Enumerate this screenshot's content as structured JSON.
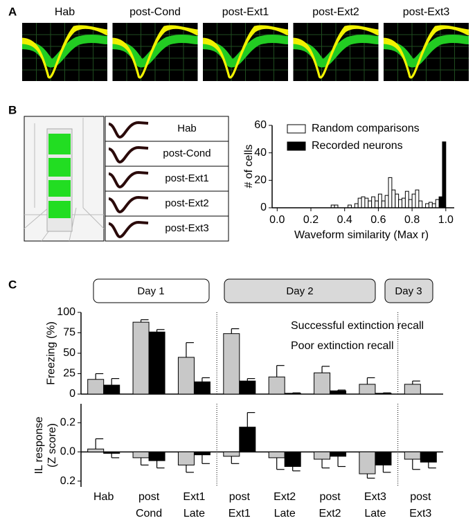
{
  "panel_labels": [
    "A",
    "B",
    "C"
  ],
  "panel_a": {
    "labels": [
      "Hab",
      "post-Cond",
      "post-Ext1",
      "post-Ext2",
      "post-Ext3"
    ]
  },
  "panel_b": {
    "labels": [
      "Hab",
      "post-Cond",
      "post-Ext1",
      "post-Ext2",
      "post-Ext3"
    ]
  },
  "panel_c": {
    "day_labels": [
      "Day 1",
      "Day 2",
      "Day 3"
    ]
  },
  "chart_data": [
    {
      "type": "histogram",
      "xlabel": "Waveform similarity (Max r)",
      "ylabel": "# of cells",
      "bins": [
        0.3,
        0.32,
        0.34,
        0.36,
        0.38,
        0.4,
        0.42,
        0.44,
        0.46,
        0.48,
        0.5,
        0.52,
        0.54,
        0.56,
        0.58,
        0.6,
        0.62,
        0.64,
        0.66,
        0.68,
        0.7,
        0.72,
        0.74,
        0.76,
        0.78,
        0.8,
        0.82,
        0.84,
        0.86,
        0.88,
        0.9,
        0.92,
        0.94,
        0.96,
        0.98,
        1.0
      ],
      "series": [
        {
          "name": "Random comparisons",
          "color": "#ffffff",
          "values": [
            0,
            2,
            2,
            0,
            0,
            0,
            2,
            0,
            3,
            7,
            8,
            7,
            5,
            8,
            5,
            10,
            5,
            9,
            22,
            13,
            10,
            6,
            7,
            12,
            6,
            10,
            13,
            5,
            0,
            3,
            4,
            3,
            6,
            0,
            0
          ]
        },
        {
          "name": "Recorded neurons",
          "color": "#000000",
          "values": [
            0,
            0,
            0,
            0,
            0,
            0,
            0,
            0,
            0,
            0,
            0,
            0,
            0,
            0,
            0,
            0,
            0,
            0,
            0,
            0,
            0,
            0,
            0,
            0,
            0,
            0,
            0,
            0,
            0,
            0,
            0,
            0,
            0,
            8,
            48
          ]
        }
      ],
      "xlim": [
        -0.03,
        1.05
      ],
      "ylim": [
        0,
        60
      ],
      "xticks": [
        {
          "value": 0,
          "label": "0.0"
        },
        {
          "value": 0.2,
          "label": "0.2"
        },
        {
          "value": 0.4,
          "label": "0.4"
        },
        {
          "value": 0.6,
          "label": "0.6"
        },
        {
          "value": 0.8,
          "label": "0.8"
        },
        {
          "value": 1,
          "label": "1.0"
        }
      ],
      "yticks": [
        0,
        20,
        40,
        60
      ]
    },
    {
      "type": "bar",
      "ylabel": "Freezing (%)",
      "series": [
        {
          "name": "Poor extinction recall",
          "color": "#c8c8c8",
          "values": [
            18,
            88,
            45,
            74,
            21,
            26,
            12,
            12
          ],
          "errors": [
            7,
            3,
            18,
            6,
            14,
            8,
            8,
            4
          ]
        },
        {
          "name": "Successful extinction recall",
          "color": "#000000",
          "values": [
            11,
            76,
            15,
            16,
            1,
            4,
            1,
            null
          ],
          "errors": [
            8,
            3,
            5,
            3,
            0.5,
            1,
            0.5,
            null
          ]
        }
      ],
      "ylim": [
        0,
        100
      ],
      "yticks": [
        0,
        25,
        50,
        75,
        100
      ]
    },
    {
      "type": "bar",
      "ylabel": "IL response\n(Z score)",
      "categories": [
        "Hab",
        "post\nCond",
        "Ext1\nLate",
        "post\nExt1",
        "Ext2\nLate",
        "post\nExt2",
        "Ext3\nLate",
        "post\nExt3"
      ],
      "series": [
        {
          "color": "#c8c8c8",
          "values": [
            0.02,
            -0.04,
            -0.09,
            -0.03,
            -0.04,
            -0.05,
            -0.15,
            -0.05
          ],
          "errors": [
            0.07,
            0.05,
            0.05,
            0.05,
            0.08,
            0.06,
            0.03,
            0.07
          ]
        },
        {
          "color": "#000000",
          "values": [
            -0.01,
            -0.06,
            -0.02,
            0.17,
            -0.1,
            -0.03,
            -0.09,
            -0.07
          ],
          "errors": [
            0.03,
            0.05,
            0.06,
            0.1,
            0.03,
            0.07,
            0.05,
            0.04
          ]
        }
      ],
      "ylim": [
        -0.24,
        0.33
      ],
      "yticks": [
        {
          "value": -0.2,
          "label": "0.2"
        },
        {
          "value": 0,
          "label": "0.0"
        },
        0.2
      ]
    }
  ]
}
